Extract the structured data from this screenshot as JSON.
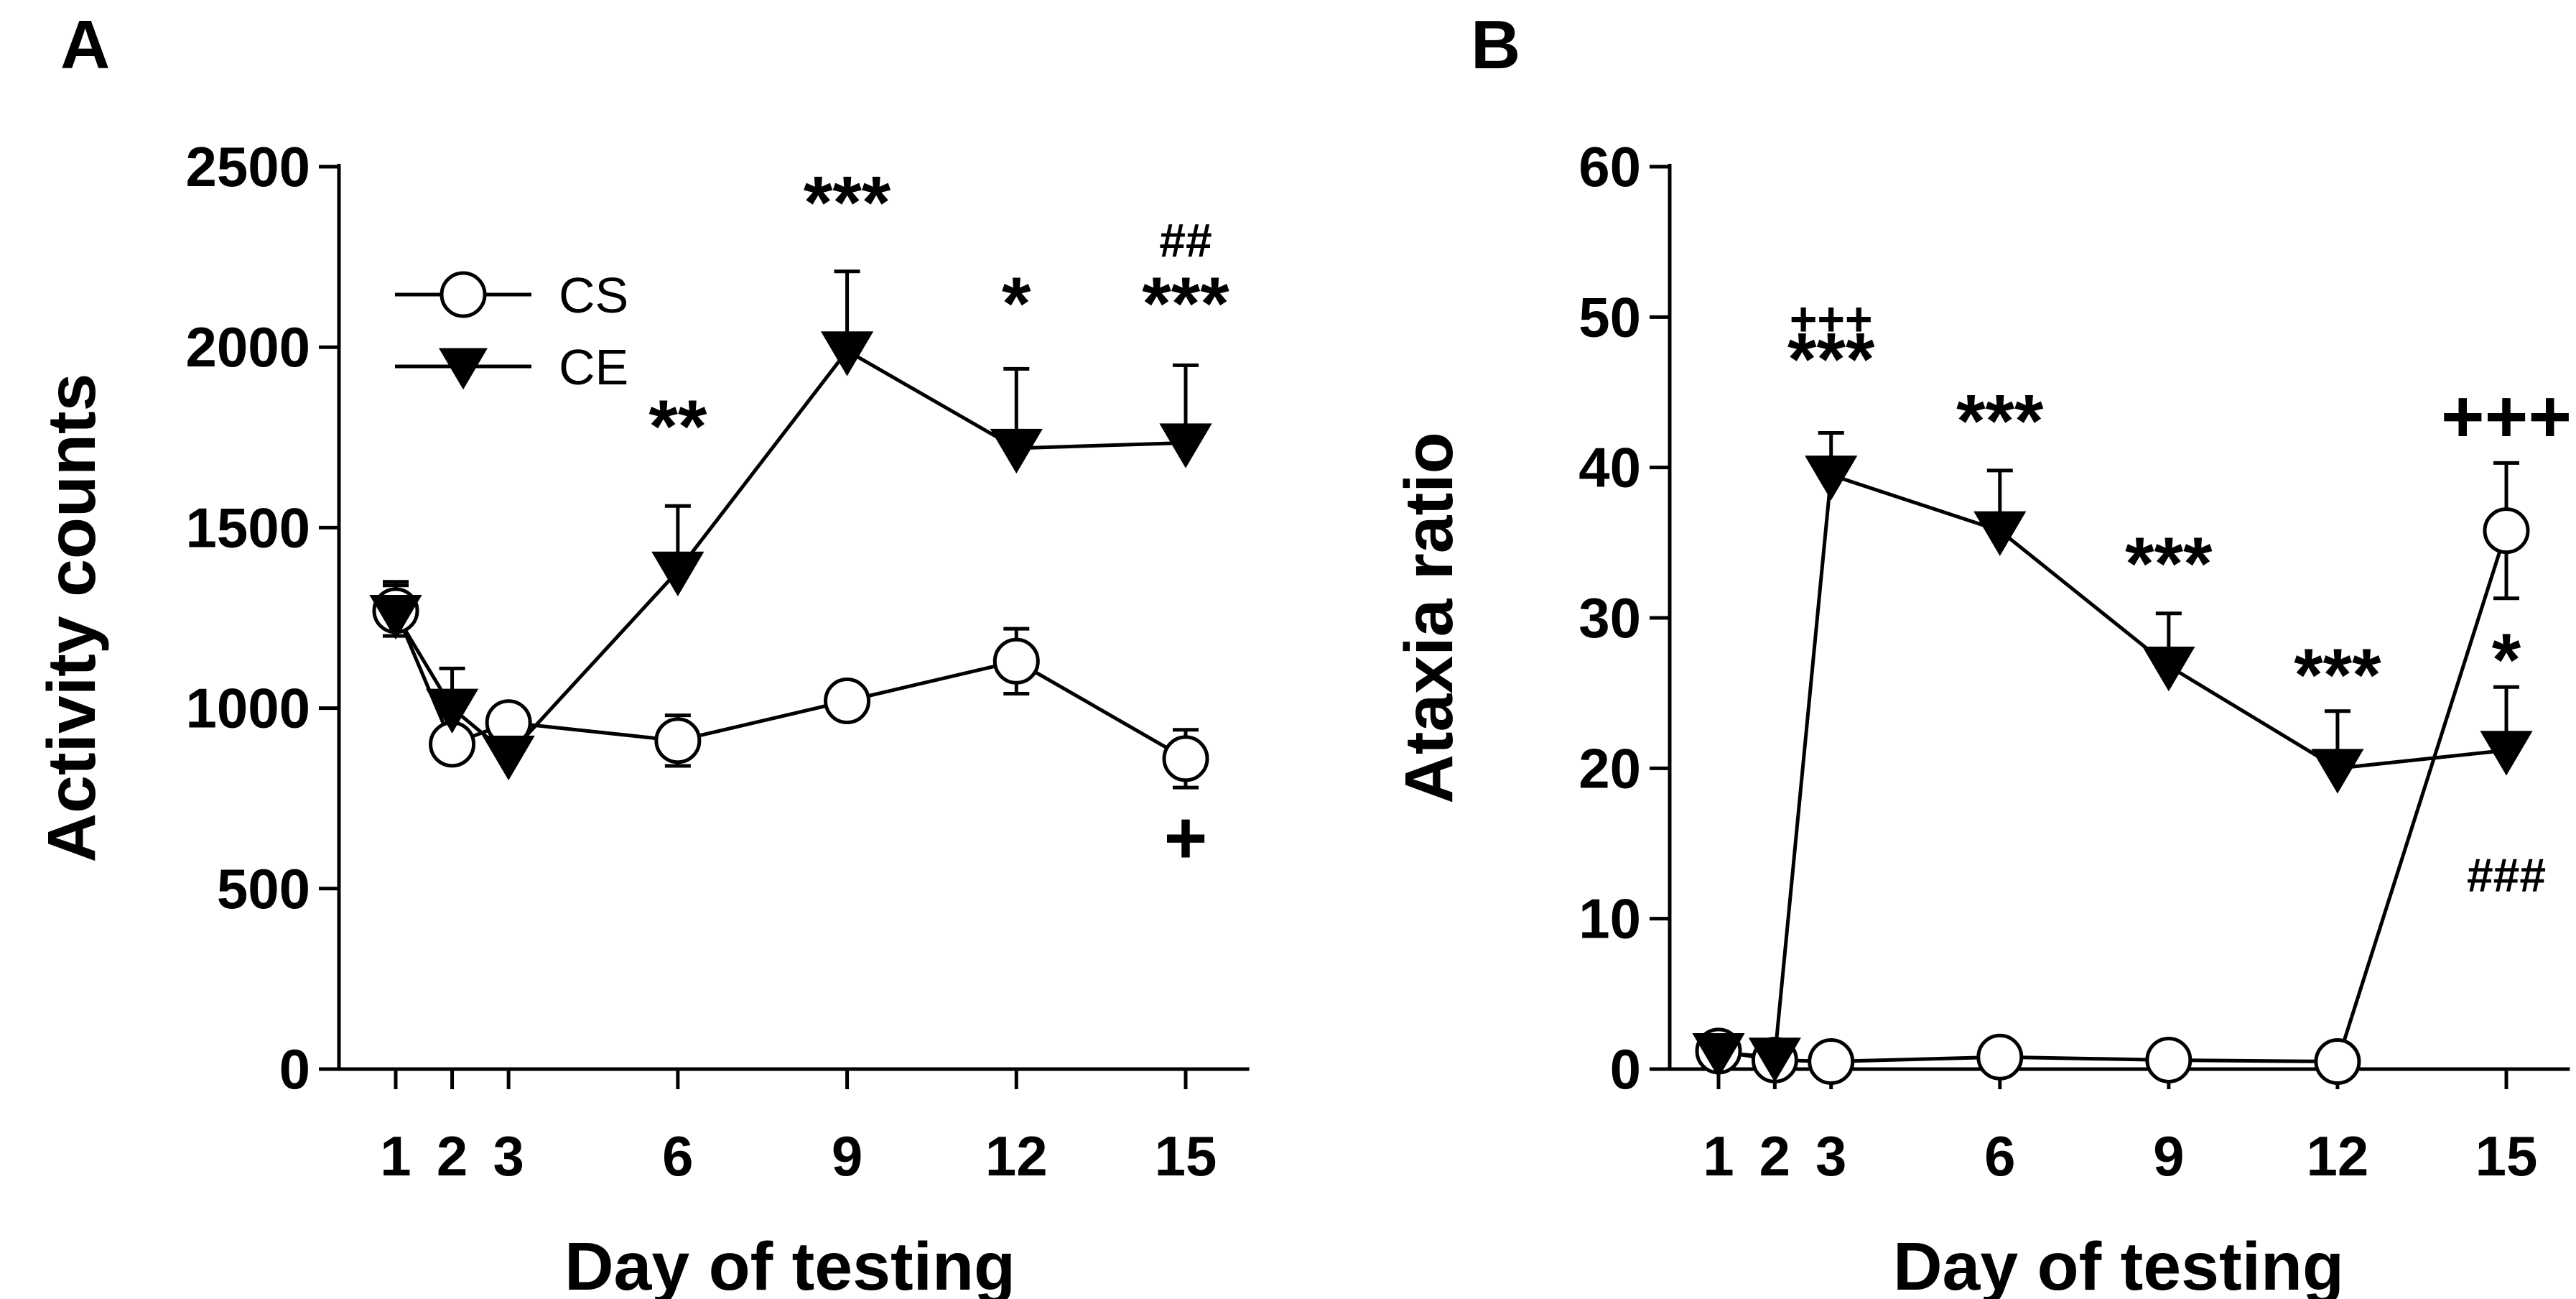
{
  "chart_data": [
    {
      "type": "line",
      "panel_label": "A",
      "title": "",
      "xlabel": "Day of testing",
      "ylabel": "Activity counts",
      "x_ticks": [
        1,
        2,
        3,
        6,
        9,
        12,
        15
      ],
      "xlim": [
        0,
        16
      ],
      "y_ticks": [
        0,
        500,
        1000,
        1500,
        2000,
        2500
      ],
      "ylim": [
        0,
        2500
      ],
      "legend": {
        "position": "top-left",
        "entries": [
          "CS",
          "CE"
        ]
      },
      "series": [
        {
          "name": "CS",
          "marker": "open-circle",
          "x": [
            1,
            2,
            3,
            6,
            9,
            12,
            15
          ],
          "y": [
            1270,
            900,
            960,
            910,
            1020,
            1130,
            860
          ],
          "error": [
            70,
            40,
            40,
            70,
            50,
            90,
            80
          ]
        },
        {
          "name": "CE",
          "marker": "filled-triangle-down",
          "x": [
            1,
            2,
            3,
            6,
            9,
            12,
            15
          ],
          "y": [
            1260,
            1000,
            870,
            1380,
            1990,
            1720,
            1735
          ],
          "error": [
            90,
            110,
            60,
            180,
            220,
            220,
            215
          ]
        }
      ],
      "annotations": [
        {
          "text": "**",
          "x": 6,
          "y": 1710,
          "size": "large"
        },
        {
          "text": "***",
          "x": 9,
          "y": 2330,
          "size": "large"
        },
        {
          "text": "*",
          "x": 12,
          "y": 2050,
          "size": "large"
        },
        {
          "text": "***",
          "x": 15,
          "y": 2050,
          "size": "large"
        },
        {
          "text": "##",
          "x": 15,
          "y": 2250,
          "size": "small"
        },
        {
          "text": "+",
          "x": 15,
          "y": 570,
          "size": "large"
        }
      ]
    },
    {
      "type": "line",
      "panel_label": "B",
      "title": "",
      "xlabel": "Day of testing",
      "ylabel": "Ataxia ratio",
      "x_ticks": [
        1,
        2,
        3,
        6,
        9,
        12,
        15
      ],
      "xlim": [
        0,
        16
      ],
      "y_ticks": [
        0,
        10,
        20,
        30,
        40,
        50,
        60
      ],
      "ylim": [
        0,
        60
      ],
      "series": [
        {
          "name": "CS",
          "marker": "open-circle",
          "x": [
            1,
            2,
            3,
            6,
            9,
            12,
            15
          ],
          "y": [
            1.2,
            0.6,
            0.5,
            0.8,
            0.6,
            0.5,
            35.8
          ],
          "error": [
            0,
            0,
            0,
            0,
            0,
            0,
            4.5
          ]
        },
        {
          "name": "CE",
          "marker": "filled-triangle-down",
          "x": [
            1,
            2,
            3,
            6,
            9,
            12,
            15
          ],
          "y": [
            1.1,
            0.8,
            39.5,
            35.8,
            26.8,
            20.0,
            21.2
          ],
          "error": [
            0.8,
            0.5,
            2.8,
            4.0,
            3.5,
            3.8,
            4.2
          ]
        }
      ],
      "annotations": [
        {
          "text": "+++",
          "x": 3,
          "y": 48.8,
          "size": "small"
        },
        {
          "text": "***",
          "x": 3,
          "y": 45.5,
          "size": "large"
        },
        {
          "text": "***",
          "x": 6,
          "y": 41.4,
          "size": "large"
        },
        {
          "text": "***",
          "x": 9,
          "y": 31.9,
          "size": "large"
        },
        {
          "text": "***",
          "x": 12,
          "y": 24.5,
          "size": "large"
        },
        {
          "text": "+++",
          "x": 15,
          "y": 41.7,
          "size": "large"
        },
        {
          "text": "*",
          "x": 15,
          "y": 25.5,
          "size": "large"
        },
        {
          "text": "###",
          "x": 15,
          "y": 11.8,
          "size": "small"
        }
      ]
    }
  ]
}
